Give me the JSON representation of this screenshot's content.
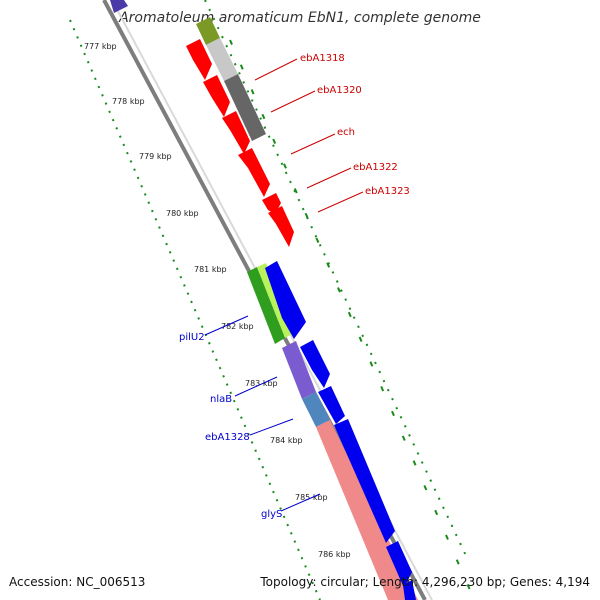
{
  "title": "Aromatoleum aromaticum EbN1, complete genome",
  "footer": {
    "accession": "Accession: NC_006513",
    "summary": "Topology: circular; Length: 4,296,230 bp; Genes: 4,194"
  },
  "ticks": [
    "777 kbp",
    "778 kbp",
    "779 kbp",
    "780 kbp",
    "781 kbp",
    "782 kbp",
    "783 kbp",
    "784 kbp",
    "785 kbp",
    "786 kbp"
  ],
  "labels_forward": [
    "ebA1318",
    "ebA1320",
    "ech",
    "ebA1322",
    "ebA1323"
  ],
  "labels_reverse": [
    "pilU2",
    "nlaB",
    "ebA1328",
    "glyS"
  ],
  "colors": {
    "forward_label": "#cc0000",
    "reverse_label": "#0000cc",
    "tick": "#1a8a1a",
    "backbone": "#808080",
    "red_gene": "#ff0000",
    "blue_gene": "#0000ee",
    "green_gene": "#2f9e1e",
    "light_green_gene": "#b9f25a",
    "purple_gene": "#7a5cd0",
    "steel_gene": "#4f86bd",
    "salmon_gene": "#f08a8a",
    "dark_gray_gene": "#666666",
    "light_gray_gene": "#c8c8c8",
    "olive_gene": "#7a9a25"
  }
}
